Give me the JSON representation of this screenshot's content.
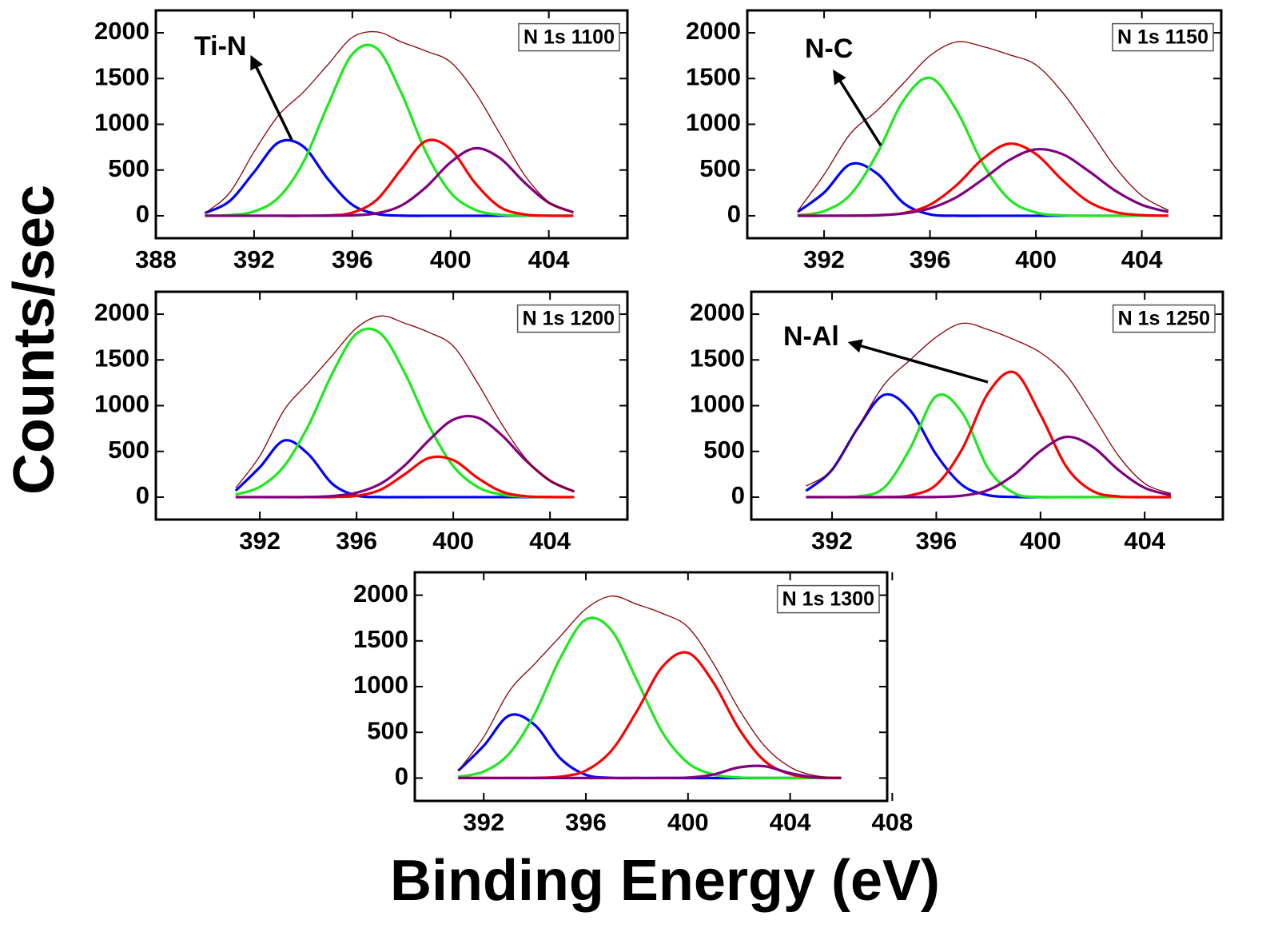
{
  "ylabel": "Counts/sec",
  "xlabel": "Binding Energy (eV)",
  "chart_data": [
    {
      "type": "line",
      "title": "N 1s 1100",
      "annotation": "Ti-N",
      "x": [
        390,
        391,
        392,
        393,
        394,
        395,
        396,
        397,
        398,
        399,
        400,
        401,
        402,
        403,
        404,
        405
      ],
      "xlim": [
        388,
        407.2
      ],
      "xticks": [
        388,
        392,
        396,
        400,
        404
      ],
      "ylim": [
        -245,
        2245
      ],
      "yticks": [
        0,
        500,
        1000,
        1500,
        2000
      ],
      "series": [
        {
          "color": "#0000ff",
          "values": [
            30,
            160,
            478,
            802,
            758,
            402,
            120,
            20,
            2,
            0,
            0,
            0,
            0,
            0,
            0,
            0
          ]
        },
        {
          "color": "#1ee81e",
          "values": [
            1,
            8,
            48,
            200,
            583,
            1207,
            1767,
            1829,
            1339,
            694,
            254,
            66,
            12,
            2,
            0,
            0
          ]
        },
        {
          "color": "#ff0000",
          "values": [
            0,
            0,
            0,
            0,
            0,
            4,
            34,
            176,
            510,
            818,
            727,
            357,
            97,
            15,
            1,
            0
          ]
        },
        {
          "color": "#800080",
          "values": [
            0,
            0,
            0,
            0,
            0,
            1,
            5,
            28,
            113,
            313,
            584,
            738,
            632,
            366,
            143,
            38
          ]
        },
        {
          "color": "#8b0000",
          "values": [
            30,
            250,
            700,
            1100,
            1350,
            1650,
            1950,
            2010,
            1900,
            1800,
            1680,
            1350,
            900,
            450,
            150,
            30
          ]
        }
      ]
    },
    {
      "type": "line",
      "title": "N 1s 1150",
      "annotation": "N-C",
      "x": [
        391,
        392,
        393,
        394,
        395,
        396,
        397,
        398,
        399,
        400,
        401,
        402,
        403,
        404,
        405
      ],
      "xlim": [
        389.1,
        407
      ],
      "xticks": [
        392,
        396,
        400,
        404
      ],
      "ylim": [
        -245,
        2245
      ],
      "yticks": [
        0,
        500,
        1000,
        1500,
        2000
      ],
      "series": [
        {
          "color": "#0000ff",
          "values": [
            42,
            253,
            564,
            462,
            139,
            15,
            1,
            0,
            0,
            0,
            0,
            0,
            0,
            0,
            0
          ]
        },
        {
          "color": "#1ee81e",
          "values": [
            7,
            51,
            233,
            677,
            1261,
            1507,
            1154,
            567,
            178,
            36,
            5,
            0,
            0,
            0,
            0
          ]
        },
        {
          "color": "#ff0000",
          "values": [
            0,
            0,
            1,
            5,
            30,
            121,
            334,
            624,
            788,
            675,
            390,
            152,
            40,
            7,
            1
          ]
        },
        {
          "color": "#800080",
          "values": [
            0,
            0,
            1,
            6,
            25,
            81,
            203,
            399,
            610,
            726,
            674,
            487,
            274,
            120,
            41
          ]
        },
        {
          "color": "#8b0000",
          "values": [
            50,
            450,
            900,
            1150,
            1450,
            1750,
            1900,
            1850,
            1760,
            1650,
            1350,
            950,
            530,
            220,
            60
          ]
        }
      ]
    },
    {
      "type": "line",
      "title": "N 1s 1200",
      "x": [
        391,
        392,
        393,
        394,
        395,
        396,
        397,
        398,
        399,
        400,
        401,
        402,
        403,
        404,
        405
      ],
      "xlim": [
        387.7,
        407.2
      ],
      "xticks": [
        392,
        396,
        400,
        404
      ],
      "ylim": [
        -245,
        2245
      ],
      "yticks": [
        0,
        500,
        1000,
        1500,
        2000
      ],
      "series": [
        {
          "color": "#0000ff",
          "values": [
            70,
            327,
            619,
            471,
            145,
            18,
            1,
            0,
            0,
            0,
            0,
            0,
            0,
            0,
            0
          ]
        },
        {
          "color": "#1ee81e",
          "values": [
            28,
            112,
            338,
            778,
            1354,
            1787,
            1787,
            1354,
            778,
            338,
            112,
            28,
            5,
            1,
            0
          ]
        },
        {
          "color": "#ff0000",
          "values": [
            0,
            0,
            0,
            0,
            1,
            15,
            82,
            252,
            429,
            405,
            211,
            61,
            10,
            1,
            0
          ]
        },
        {
          "color": "#800080",
          "values": [
            0,
            0,
            0,
            2,
            12,
            48,
            148,
            349,
            624,
            847,
            870,
            678,
            401,
            180,
            61
          ]
        },
        {
          "color": "#8b0000",
          "values": [
            100,
            450,
            950,
            1250,
            1550,
            1850,
            1980,
            1900,
            1800,
            1650,
            1250,
            800,
            420,
            180,
            60
          ]
        }
      ]
    },
    {
      "type": "line",
      "title": "N 1s 1250",
      "annotation": "N-Al",
      "x": [
        391,
        392,
        393,
        394,
        395,
        396,
        397,
        398,
        399,
        400,
        401,
        402,
        403,
        404,
        405
      ],
      "xlim": [
        388.9,
        407
      ],
      "xticks": [
        392,
        396,
        400,
        404
      ],
      "ylim": [
        -245,
        2245
      ],
      "yticks": [
        0,
        500,
        1000,
        1500,
        2000
      ],
      "series": [
        {
          "color": "#0000ff",
          "values": [
            68,
            299,
            761,
            1118,
            948,
            465,
            131,
            21,
            2,
            0,
            0,
            0,
            0,
            0,
            0
          ]
        },
        {
          "color": "#1ee81e",
          "values": [
            0,
            0,
            8,
            104,
            534,
            1104,
            920,
            309,
            42,
            2,
            0,
            0,
            0,
            0,
            0
          ]
        },
        {
          "color": "#ff0000",
          "values": [
            0,
            0,
            0,
            1,
            19,
            136,
            529,
            1142,
            1363,
            901,
            330,
            67,
            7,
            0,
            0
          ]
        },
        {
          "color": "#800080",
          "values": [
            0,
            0,
            0,
            0,
            0,
            2,
            16,
            78,
            248,
            504,
            659,
            551,
            296,
            102,
            22
          ]
        },
        {
          "color": "#8b0000",
          "values": [
            120,
            300,
            770,
            1230,
            1500,
            1750,
            1900,
            1830,
            1720,
            1580,
            1330,
            900,
            450,
            150,
            40
          ]
        }
      ]
    },
    {
      "type": "line",
      "title": "N 1s 1300",
      "x": [
        391,
        392,
        393,
        394,
        395,
        396,
        397,
        398,
        399,
        400,
        401,
        402,
        403,
        404,
        405,
        406
      ],
      "xlim": [
        389.3,
        407.8
      ],
      "xticks": [
        392,
        396,
        400,
        404,
        408
      ],
      "ylim": [
        -250,
        2250
      ],
      "yticks": [
        0,
        500,
        1000,
        1500,
        2000
      ],
      "series": [
        {
          "color": "#0000ff",
          "values": [
            80,
            353,
            684,
            580,
            215,
            35,
            2,
            0,
            0,
            0,
            0,
            0,
            0,
            0,
            0,
            0
          ]
        },
        {
          "color": "#1ee81e",
          "values": [
            14,
            72,
            268,
            705,
            1314,
            1733,
            1617,
            1068,
            498,
            165,
            39,
            6,
            1,
            0,
            0,
            0
          ]
        },
        {
          "color": "#ff0000",
          "values": [
            0,
            0,
            0,
            2,
            15,
            82,
            299,
            733,
            1218,
            1369,
            1042,
            536,
            187,
            44,
            7,
            1
          ]
        },
        {
          "color": "#800080",
          "values": [
            0,
            0,
            0,
            0,
            0,
            0,
            0,
            0,
            0,
            5,
            39,
            117,
            129,
            53,
            8,
            0
          ]
        },
        {
          "color": "#8b0000",
          "values": [
            80,
            450,
            950,
            1250,
            1550,
            1850,
            1990,
            1900,
            1800,
            1650,
            1250,
            750,
            350,
            120,
            25,
            5
          ]
        }
      ]
    }
  ]
}
